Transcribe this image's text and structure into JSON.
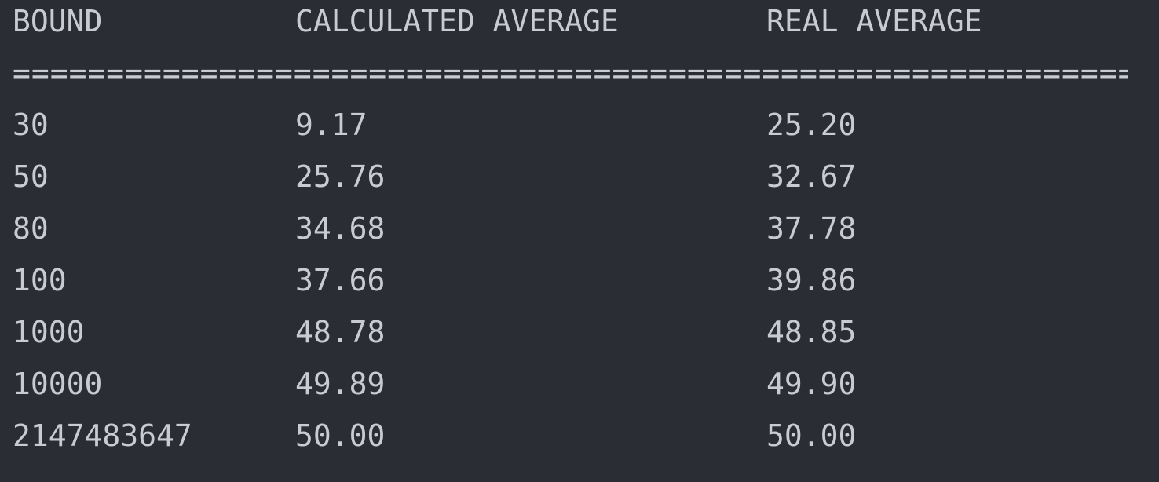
{
  "header": {
    "bound": "BOUND",
    "calculated": "CALCULATED AVERAGE",
    "real": "REAL AVERAGE"
  },
  "separator": "============================================================",
  "rows": [
    {
      "bound": "30",
      "calculated": "9.17",
      "real": "25.20"
    },
    {
      "bound": "50",
      "calculated": "25.76",
      "real": "32.67"
    },
    {
      "bound": "80",
      "calculated": "34.68",
      "real": "37.78"
    },
    {
      "bound": "100",
      "calculated": "37.66",
      "real": "39.86"
    },
    {
      "bound": "1000",
      "calculated": "48.78",
      "real": "48.85"
    },
    {
      "bound": "10000",
      "calculated": "49.89",
      "real": "49.90"
    },
    {
      "bound": "2147483647",
      "calculated": "50.00",
      "real": "50.00"
    }
  ],
  "colors": {
    "background": "#2b2d34",
    "text": "#c9cbd0"
  }
}
